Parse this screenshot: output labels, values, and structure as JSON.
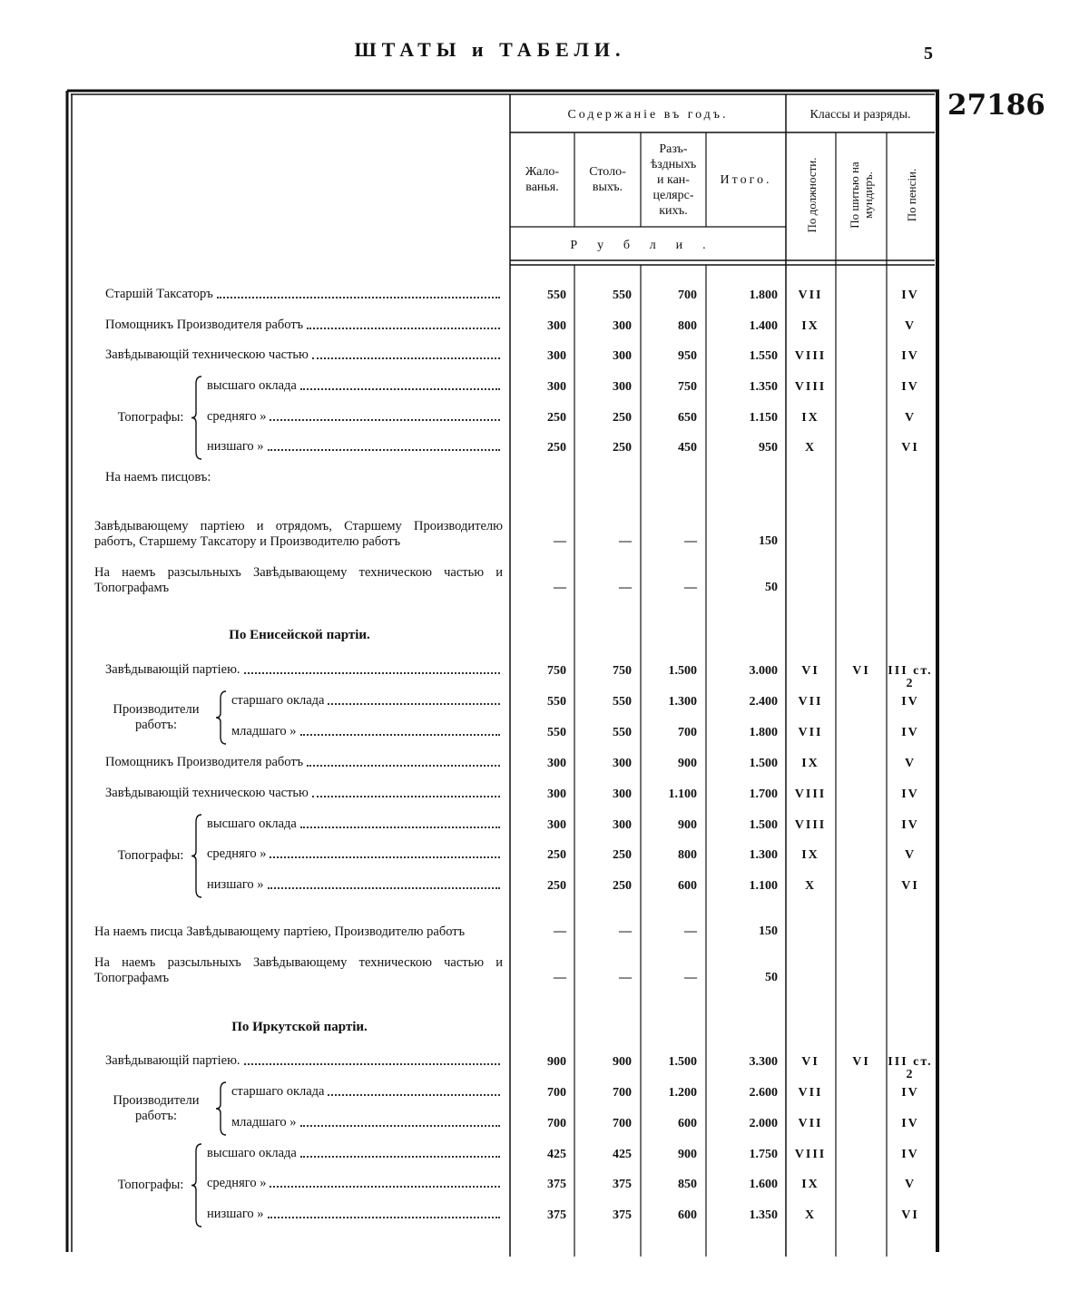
{
  "header": {
    "title": "ШТАТЫ и ТАБЕЛИ.",
    "page": "5",
    "number": "27186"
  },
  "table": {
    "group1": "Содержаніе въ годъ.",
    "columns": [
      "Жало-\nванья.",
      "Столо-\nвыхъ.",
      "Разъ-\nѣздныхъ\nи кан-\nцелярс-\nкихъ.",
      "Итого."
    ],
    "units": "Рубли.",
    "group2": "Классы и разряды.",
    "class_columns": [
      "По должности.",
      "По шитью на\nмундиръ.",
      "По пенсіи."
    ],
    "rows": [
      {
        "label": "Старшій Таксаторъ",
        "cells": [
          "550",
          "550",
          "700",
          "1.800",
          "VII",
          null,
          "IV"
        ]
      },
      {
        "label": "Помощникъ Производителя работъ",
        "cells": [
          "300",
          "300",
          "800",
          "1.400",
          "IX",
          null,
          "V"
        ]
      },
      {
        "label": "Завѣдывающій техническою частью",
        "cells": [
          "300",
          "300",
          "950",
          "1.550",
          "VIII",
          null,
          "IV"
        ]
      },
      {
        "group": "Топографы:",
        "items": [
          {
            "label": "высшаго оклада",
            "cells": [
              "300",
              "300",
              "750",
              "1.350",
              "VIII",
              null,
              "IV"
            ]
          },
          {
            "label": "средняго »",
            "cells": [
              "250",
              "250",
              "650",
              "1.150",
              "IX",
              null,
              "V"
            ]
          },
          {
            "label": "низшаго »",
            "cells": [
              "250",
              "250",
              "450",
              "950",
              "X",
              null,
              "VI"
            ]
          }
        ]
      },
      {
        "label": "На наемъ писцовъ:"
      },
      {
        "label": "Завѣдывающему партіею и отрядомъ, Старшему Производителю работъ, Старшему Таксатору и Производителю работъ",
        "cells": [
          "—",
          "—",
          "—",
          "150",
          null,
          null,
          null
        ]
      },
      {
        "label": "На наемъ разсыльныхъ Завѣдывающему техническою частью и Топографамъ",
        "cells": [
          "—",
          "—",
          "—",
          "50",
          null,
          null,
          null
        ]
      },
      {
        "heading": "По Енисейской партіи."
      },
      {
        "label": "Завѣдывающій партіею.",
        "cells": [
          "750",
          "750",
          "1.500",
          "3.000",
          "VI",
          "VI",
          "III ст. 2"
        ]
      },
      {
        "group": "Производители работъ:",
        "items": [
          {
            "label": "старшаго оклада",
            "cells": [
              "550",
              "550",
              "1.300",
              "2.400",
              "VII",
              null,
              "IV"
            ]
          },
          {
            "label": "младшаго »",
            "cells": [
              "550",
              "550",
              "700",
              "1.800",
              "VII",
              null,
              "IV"
            ]
          }
        ]
      },
      {
        "label": "Помощникъ Производителя работъ",
        "cells": [
          "300",
          "300",
          "900",
          "1.500",
          "IX",
          null,
          "V"
        ]
      },
      {
        "label": "Завѣдывающій техническою частью",
        "cells": [
          "300",
          "300",
          "1.100",
          "1.700",
          "VIII",
          null,
          "IV"
        ]
      },
      {
        "group": "Топографы:",
        "items": [
          {
            "label": "высшаго оклада",
            "cells": [
              "300",
              "300",
              "900",
              "1.500",
              "VIII",
              null,
              "IV"
            ]
          },
          {
            "label": "средняго »",
            "cells": [
              "250",
              "250",
              "800",
              "1.300",
              "IX",
              null,
              "V"
            ]
          },
          {
            "label": "низшаго »",
            "cells": [
              "250",
              "250",
              "600",
              "1.100",
              "X",
              null,
              "VI"
            ]
          }
        ]
      },
      {
        "label": "На наемъ писца Завѣдывающему партіею, Производителю работъ",
        "cells": [
          "—",
          "—",
          "—",
          "150",
          null,
          null,
          null
        ]
      },
      {
        "label": "На наемъ разсыльныхъ Завѣдывающему техническою частью и Топографамъ",
        "cells": [
          "—",
          "—",
          "—",
          "50",
          null,
          null,
          null
        ]
      },
      {
        "heading": "По Иркутской партіи."
      },
      {
        "label": "Завѣдывающій партіею.",
        "cells": [
          "900",
          "900",
          "1.500",
          "3.300",
          "VI",
          "VI",
          "III ст. 2"
        ]
      },
      {
        "group": "Производители работъ:",
        "items": [
          {
            "label": "старшаго оклада",
            "cells": [
              "700",
              "700",
              "1.200",
              "2.600",
              "VII",
              null,
              "IV"
            ]
          },
          {
            "label": "младшаго »",
            "cells": [
              "700",
              "700",
              "600",
              "2.000",
              "VII",
              null,
              "IV"
            ]
          }
        ]
      },
      {
        "group": "Топографы:",
        "items": [
          {
            "label": "высшаго оклада",
            "cells": [
              "425",
              "425",
              "900",
              "1.750",
              "VIII",
              null,
              "IV"
            ]
          },
          {
            "label": "средняго »",
            "cells": [
              "375",
              "375",
              "850",
              "1.600",
              "IX",
              null,
              "V"
            ]
          },
          {
            "label": "низшаго »",
            "cells": [
              "375",
              "375",
              "600",
              "1.350",
              "X",
              null,
              "VI"
            ]
          }
        ]
      }
    ]
  }
}
